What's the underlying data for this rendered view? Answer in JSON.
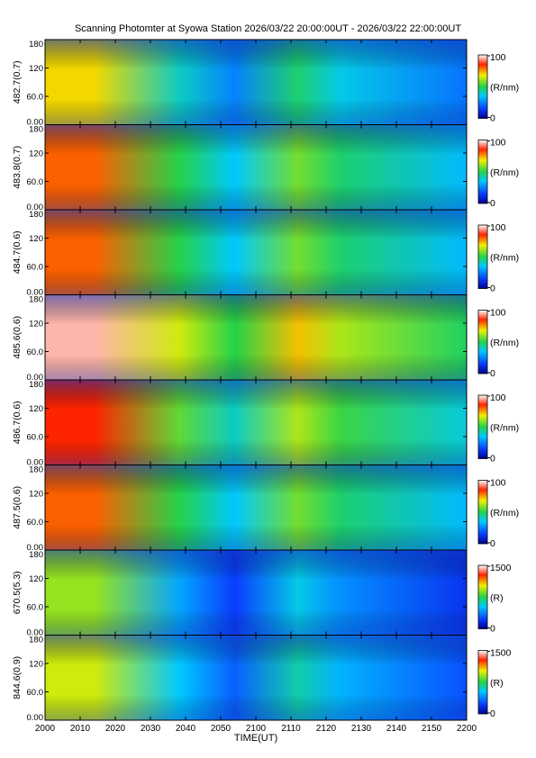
{
  "title": "Scanning Photomter at Syowa Station 2026/03/22 20:00:00UT - 2026/03/22 22:00:00UT",
  "chart_data": {
    "type": "heatmap",
    "xlabel": "TIME(UT)",
    "xticks": [
      "2000",
      "2010",
      "2020",
      "2030",
      "2040",
      "2050",
      "2100",
      "2110",
      "2120",
      "2130",
      "2140",
      "2150",
      "2200"
    ],
    "yticks": [
      "0.00",
      "60.0",
      "120",
      "180"
    ],
    "ylim": [
      0,
      180
    ],
    "colormap": "blue-green-yellow-red-white",
    "panels": [
      {
        "ylabel": "482.7(0.7)",
        "cbar_max": "100",
        "cbar_min": "0",
        "cbar_unit": "(R/nm)",
        "level": 0.35
      },
      {
        "ylabel": "483.8(0.7)",
        "cbar_max": "100",
        "cbar_min": "0",
        "cbar_unit": "(R/nm)",
        "level": 0.45
      },
      {
        "ylabel": "484.7(0.6)",
        "cbar_max": "100",
        "cbar_min": "0",
        "cbar_unit": "(R/nm)",
        "level": 0.45
      },
      {
        "ylabel": "485.6(0.6)",
        "cbar_max": "100",
        "cbar_min": "0",
        "cbar_unit": "(R/nm)",
        "level": 0.6
      },
      {
        "ylabel": "486.7(0.6)",
        "cbar_max": "100",
        "cbar_min": "0",
        "cbar_unit": "(R/nm)",
        "level": 0.5
      },
      {
        "ylabel": "487.5(0.6)",
        "cbar_max": "100",
        "cbar_min": "0",
        "cbar_unit": "(R/nm)",
        "level": 0.45
      },
      {
        "ylabel": "670.5(5.3)",
        "cbar_max": "1500",
        "cbar_min": "0",
        "cbar_unit": "(R)",
        "level": 0.25
      },
      {
        "ylabel": "844.6(0.9)",
        "cbar_max": "1500",
        "cbar_min": "0",
        "cbar_unit": "(R)",
        "level": 0.3
      }
    ]
  }
}
